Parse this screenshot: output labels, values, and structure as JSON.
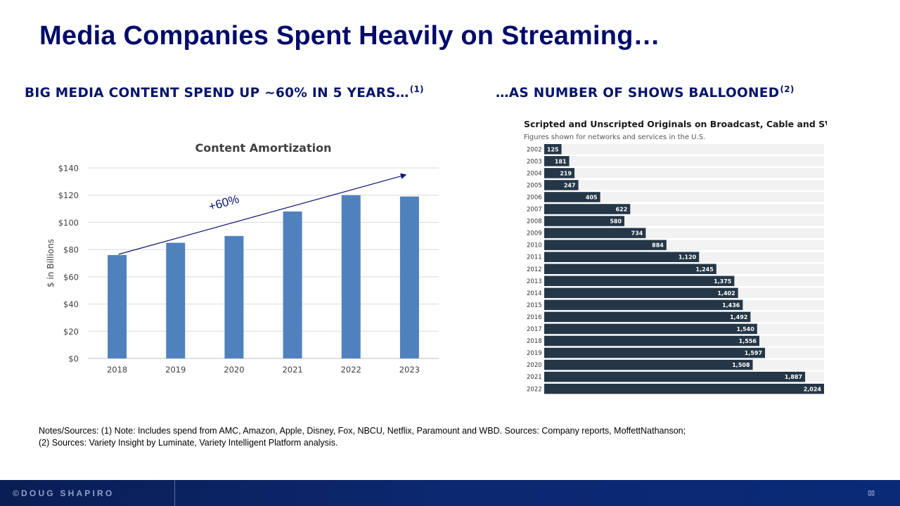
{
  "slide": {
    "title": "Media Companies Spent Heavily on Streaming…",
    "left_subhead": "BIG MEDIA CONTENT SPEND UP ~60% IN 5 YEARS…",
    "left_subhead_ref": "(1)",
    "right_subhead": "…AS NUMBER OF SHOWS BALLOONED",
    "right_subhead_ref": "(2)",
    "notes_line1": "Notes/Sources:  (1) Note: Includes spend from AMC, Amazon, Apple, Disney, Fox, NBCU, Netflix, Paramount and WBD. Sources: Company reports, MoffettNathanson;",
    "notes_line2": "(2) Sources: Variety Insight by Luminate, Variety Intelligent Platform analysis.",
    "footer_brand": "©DOUG SHAPIRO",
    "page_number": "▯▯"
  },
  "colors": {
    "title": "#000a6b",
    "amortization_bar": "#4f81bd",
    "trend_arrow": "#0d1670",
    "shows_bar": "#253746",
    "shows_track": "#f2f2f2"
  },
  "chart_data": [
    {
      "type": "bar",
      "title": "Content Amortization",
      "xlabel": "",
      "ylabel": "$ in Billions",
      "categories": [
        "2018",
        "2019",
        "2020",
        "2021",
        "2022",
        "2023"
      ],
      "values": [
        76,
        85,
        90,
        108,
        120,
        119
      ],
      "ylim": [
        0,
        140
      ],
      "yticks": [
        0,
        20,
        40,
        60,
        80,
        100,
        120,
        140
      ],
      "ytick_labels": [
        "$0",
        "$20",
        "$40",
        "$60",
        "$80",
        "$100",
        "$120",
        "$140"
      ],
      "grid": true,
      "annotation": {
        "text": "+60%",
        "type": "arrow",
        "from_category": "2018",
        "to_category": "2023"
      }
    },
    {
      "type": "bar",
      "orientation": "horizontal",
      "title": "Scripted and Unscripted Originals on Broadcast, Cable and SVOD",
      "subtitle": "Figures shown for networks and services in the U.S.",
      "categories": [
        "2002",
        "2003",
        "2004",
        "2005",
        "2006",
        "2007",
        "2008",
        "2009",
        "2010",
        "2011",
        "2012",
        "2013",
        "2014",
        "2015",
        "2016",
        "2017",
        "2018",
        "2019",
        "2020",
        "2021",
        "2022"
      ],
      "values": [
        125,
        181,
        219,
        247,
        405,
        622,
        580,
        734,
        884,
        1120,
        1245,
        1375,
        1402,
        1436,
        1492,
        1540,
        1556,
        1597,
        1508,
        1887,
        2024
      ],
      "value_labels": [
        "125",
        "181",
        "219",
        "247",
        "405",
        "622",
        "580",
        "734",
        "884",
        "1,120",
        "1,245",
        "1,375",
        "1,402",
        "1,436",
        "1,492",
        "1,540",
        "1,556",
        "1,597",
        "1,508",
        "1,887",
        "2,024"
      ],
      "xlim": [
        0,
        2024
      ],
      "grid": false
    }
  ]
}
